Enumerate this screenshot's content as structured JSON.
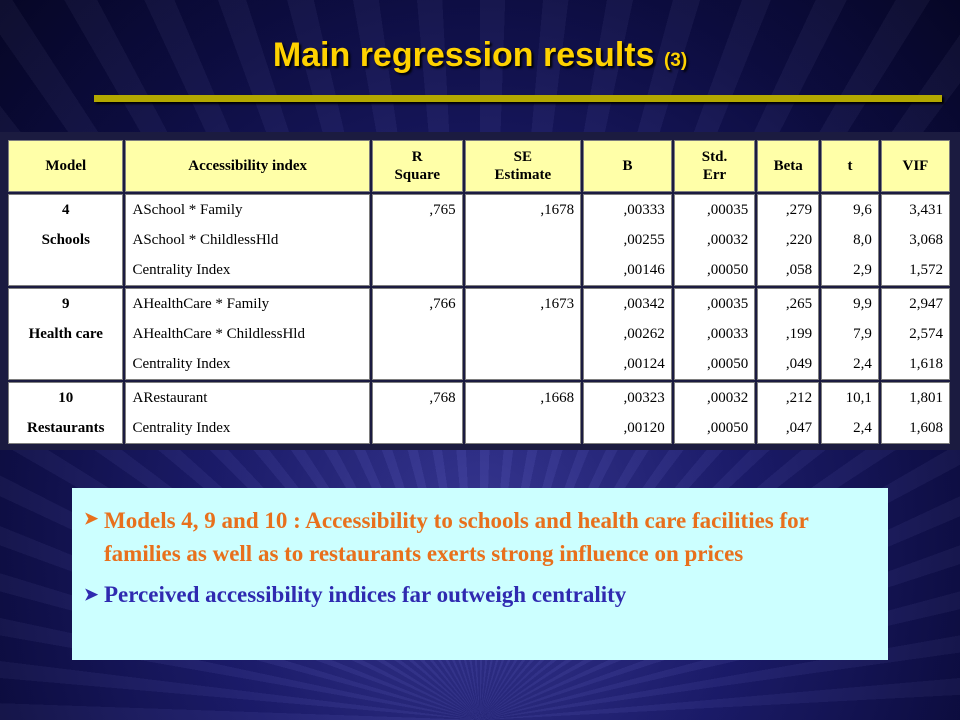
{
  "slide": {
    "title": "Main regression results",
    "title_suffix": "(3)"
  },
  "table": {
    "headers": {
      "model": "Model",
      "index": "Accessibility index",
      "r_square_1": "R",
      "r_square_2": "Square",
      "se_1": "SE",
      "se_2": "Estimate",
      "b": "B",
      "std_err_1": "Std.",
      "std_err_2": "Err",
      "beta": "Beta",
      "t": "t",
      "vif": "VIF"
    },
    "groups": [
      {
        "model_number": "4",
        "model_name": "Schools",
        "r_square": ",765",
        "se_estimate": ",1678",
        "rows": [
          {
            "index": "ASchool * Family",
            "b": ",00333",
            "std_err": ",00035",
            "beta": ",279",
            "t": "9,6",
            "vif": "3,431"
          },
          {
            "index": "ASchool * ChildlessHld",
            "b": ",00255",
            "std_err": ",00032",
            "beta": ",220",
            "t": "8,0",
            "vif": "3,068"
          },
          {
            "index": "Centrality Index",
            "b": ",00146",
            "std_err": ",00050",
            "beta": ",058",
            "t": "2,9",
            "vif": "1,572"
          }
        ]
      },
      {
        "model_number": "9",
        "model_name": "Health care",
        "r_square": ",766",
        "se_estimate": ",1673",
        "rows": [
          {
            "index": "AHealthCare * Family",
            "b": ",00342",
            "std_err": ",00035",
            "beta": ",265",
            "t": "9,9",
            "vif": "2,947"
          },
          {
            "index": "AHealthCare * ChildlessHld",
            "b": ",00262",
            "std_err": ",00033",
            "beta": ",199",
            "t": "7,9",
            "vif": "2,574"
          },
          {
            "index": "Centrality Index",
            "b": ",00124",
            "std_err": ",00050",
            "beta": ",049",
            "t": "2,4",
            "vif": "1,618"
          }
        ]
      },
      {
        "model_number": "10",
        "model_name": "Restaurants",
        "r_square": ",768",
        "se_estimate": ",1668",
        "rows": [
          {
            "index": "ARestaurant",
            "b": ",00323",
            "std_err": ",00032",
            "beta": ",212",
            "t": "10,1",
            "vif": "1,801"
          },
          {
            "index": "Centrality Index",
            "b": ",00120",
            "std_err": ",00050",
            "beta": ",047",
            "t": "2,4",
            "vif": "1,608"
          }
        ]
      }
    ]
  },
  "bullets": [
    {
      "text": "Models 4, 9 and 10 : Accessibility to schools and health care facilities for families as well as to restaurants exerts strong influence on prices",
      "color": "#e8701c",
      "icon": "arrowhead-bullet-icon"
    },
    {
      "text": "Perceived accessibility indices far outweigh centrality",
      "color": "#2f2ab0",
      "icon": "arrowhead-bullet-icon"
    }
  ],
  "colors": {
    "title": "#ffd200",
    "rule": "#b3a800",
    "header_fill": "#ffffa8",
    "panel_fill": "#ccffff"
  }
}
